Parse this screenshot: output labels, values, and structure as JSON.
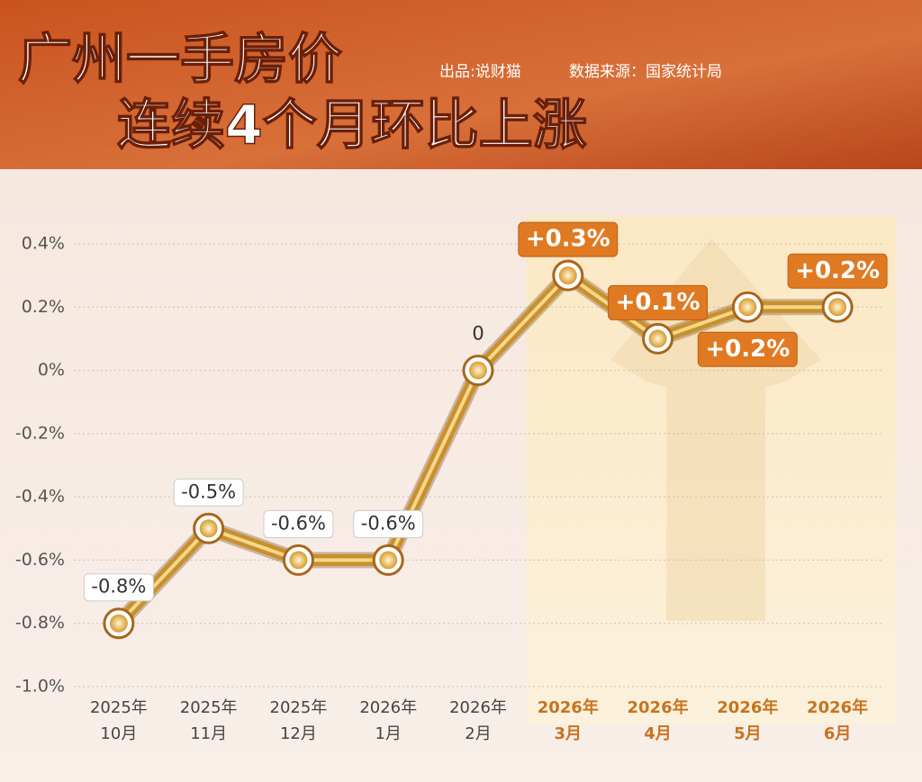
{
  "chart_data": {
    "type": "line",
    "title": [
      "广州一手房价",
      "连续4个月环比上涨"
    ],
    "credits": [
      "出品:说财猫",
      "数据来源：国家统计局"
    ],
    "categories": [
      [
        "2025年",
        "10月"
      ],
      [
        "2025年",
        "11月"
      ],
      [
        "2025年",
        "12月"
      ],
      [
        "2026年",
        "1月"
      ],
      [
        "2026年",
        "2月"
      ],
      [
        "2026年",
        "3月"
      ],
      [
        "2026年",
        "4月"
      ],
      [
        "2026年",
        "5月"
      ],
      [
        "2026年",
        "6月"
      ]
    ],
    "values": [
      -0.8,
      -0.5,
      -0.6,
      -0.6,
      0,
      0.3,
      0.1,
      0.2,
      0.2
    ],
    "value_labels": [
      "-0.8%",
      "-0.5%",
      "-0.6%",
      "-0.6%",
      "0",
      "+0.3%",
      "+0.1%",
      "+0.2%",
      "+0.2%"
    ],
    "color": "#c8902e",
    "ylim": [
      -1.0,
      0.4
    ],
    "yticks": [
      {
        "value": 0.4,
        "label": "0.4%"
      },
      {
        "value": 0.2,
        "label": "0.2%"
      },
      {
        "value": 0,
        "label": "0%"
      },
      {
        "value": -0.2,
        "label": "-0.2%"
      },
      {
        "value": -0.4,
        "label": "-0.4%"
      },
      {
        "value": -0.6,
        "label": "-0.6%"
      },
      {
        "value": -0.8,
        "label": "-0.8%"
      },
      {
        "value": -1.0,
        "label": "-1.0%"
      }
    ],
    "grid": true
  }
}
